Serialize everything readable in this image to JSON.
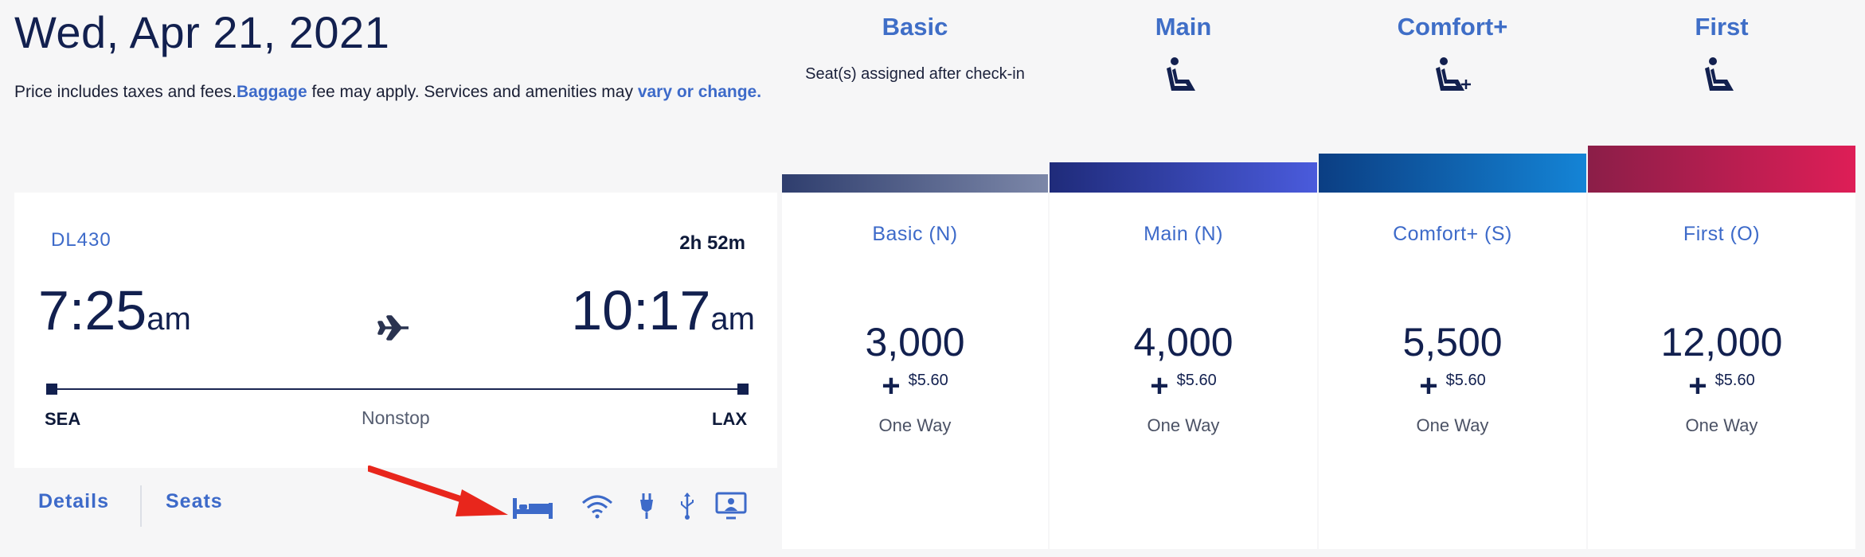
{
  "header": {
    "date": "Wed, Apr 21, 2021",
    "note_before": "Price includes taxes and fees.",
    "baggage_link": "Baggage",
    "note_middle": " fee may apply. Services and amenities may ",
    "vary_link": "vary or change."
  },
  "columns": [
    {
      "name": "Basic",
      "subtitle": "Seat(s) assigned after check-in"
    },
    {
      "name": "Main"
    },
    {
      "name": "Comfort+"
    },
    {
      "name": "First"
    }
  ],
  "flight": {
    "number": "DL430",
    "duration": "2h 52m",
    "depart_time": "7:25",
    "depart_ampm": "am",
    "arrive_time": "10:17",
    "arrive_ampm": "am",
    "origin": "SEA",
    "destination": "LAX",
    "stops": "Nonstop",
    "details_label": "Details",
    "seats_label": "Seats",
    "amenities": [
      "flat-bed-icon",
      "wifi-icon",
      "power-plug-icon",
      "usb-icon",
      "personal-screen-icon"
    ]
  },
  "fares": [
    {
      "label": "Basic (N)",
      "miles": "3,000",
      "plus": "+",
      "fee": "$5.60",
      "trip": "One Way"
    },
    {
      "label": "Main (N)",
      "miles": "4,000",
      "plus": "+",
      "fee": "$5.60",
      "trip": "One Way"
    },
    {
      "label": "Comfort+ (S)",
      "miles": "5,500",
      "plus": "+",
      "fee": "$5.60",
      "trip": "One Way"
    },
    {
      "label": "First (O)",
      "miles": "12,000",
      "plus": "+",
      "fee": "$5.60",
      "trip": "One Way"
    }
  ],
  "colors": {
    "accent": "#3d6ac9",
    "navy": "#12204f",
    "arrow": "#e8261c"
  }
}
